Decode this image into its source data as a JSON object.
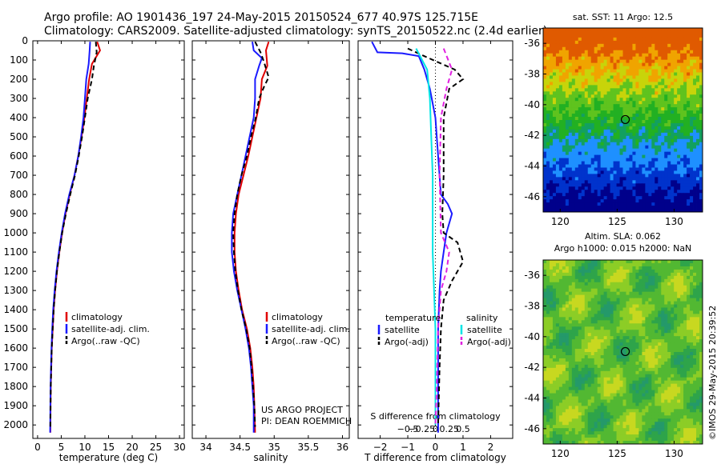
{
  "header": {
    "line1": "Argo profile: AO 1901436_197 24-May-2015 20150524_677 40.97S 125.715E",
    "line2": "Climatology: CARS2009. Satellite-adjusted climatology: synTS_20150522.nc (2.4d earlier)"
  },
  "stamp": "©IMOS 29-May-2015 20:39:52",
  "colors": {
    "climatology": "#e00000",
    "satellite": "#1a1aff",
    "argo": "#000000",
    "sal_sat": "#00e5e5",
    "sal_argo": "#e020e0"
  },
  "chart_data": [
    {
      "type": "line",
      "name": "temperature-profile",
      "xlabel": "temperature (deg C)",
      "ylabel": "",
      "xlim": [
        -1,
        31
      ],
      "ylim": [
        2070,
        0
      ],
      "xticks": [
        0,
        5,
        10,
        15,
        20,
        25,
        30
      ],
      "yticks": [
        0,
        100,
        200,
        300,
        400,
        500,
        600,
        700,
        800,
        900,
        1000,
        1100,
        1200,
        1300,
        1400,
        1500,
        1600,
        1700,
        1800,
        1900,
        2000
      ],
      "legend": [
        "climatology",
        "satellite-adj. clim.",
        "Argo(..raw -QC)"
      ],
      "series": [
        {
          "name": "climatology",
          "color": "#e00000",
          "dash": "",
          "points": [
            [
              12.6,
              5
            ],
            [
              13.2,
              50
            ],
            [
              11.5,
              120
            ],
            [
              10.9,
              200
            ],
            [
              10.4,
              300
            ],
            [
              9.9,
              400
            ],
            [
              9.3,
              500
            ],
            [
              8.6,
              600
            ],
            [
              7.8,
              700
            ],
            [
              6.8,
              800
            ],
            [
              5.9,
              900
            ],
            [
              5.2,
              1000
            ],
            [
              4.6,
              1100
            ],
            [
              4.1,
              1200
            ],
            [
              3.7,
              1300
            ],
            [
              3.4,
              1400
            ],
            [
              3.2,
              1500
            ],
            [
              3.0,
              1600
            ],
            [
              2.9,
              1700
            ],
            [
              2.8,
              1800
            ],
            [
              2.75,
              1900
            ],
            [
              2.7,
              2040
            ]
          ]
        },
        {
          "name": "satellite-adj. clim.",
          "color": "#1a1aff",
          "dash": "",
          "points": [
            [
              11.1,
              5
            ],
            [
              11.0,
              50
            ],
            [
              10.8,
              120
            ],
            [
              10.3,
              200
            ],
            [
              10.0,
              300
            ],
            [
              9.7,
              400
            ],
            [
              9.2,
              500
            ],
            [
              8.6,
              600
            ],
            [
              7.8,
              700
            ],
            [
              6.7,
              800
            ],
            [
              5.8,
              900
            ],
            [
              5.1,
              1000
            ],
            [
              4.5,
              1100
            ],
            [
              4.0,
              1200
            ],
            [
              3.6,
              1300
            ],
            [
              3.3,
              1400
            ],
            [
              3.1,
              1500
            ],
            [
              2.95,
              1600
            ],
            [
              2.85,
              1700
            ],
            [
              2.75,
              1800
            ],
            [
              2.7,
              1900
            ],
            [
              2.65,
              2040
            ]
          ]
        },
        {
          "name": "Argo(..raw -QC)",
          "color": "#000000",
          "dash": "6,4",
          "points": [
            [
              12.3,
              5
            ],
            [
              12.5,
              60
            ],
            [
              11.9,
              130
            ],
            [
              11.5,
              200
            ],
            [
              10.6,
              300
            ],
            [
              10.0,
              400
            ],
            [
              9.4,
              500
            ],
            [
              8.7,
              600
            ],
            [
              7.9,
              700
            ],
            [
              6.9,
              800
            ],
            [
              6.0,
              900
            ],
            [
              5.2,
              1000
            ],
            [
              4.6,
              1100
            ],
            [
              4.1,
              1200
            ],
            [
              3.7,
              1300
            ],
            [
              3.4,
              1400
            ],
            [
              3.2,
              1500
            ],
            [
              3.0,
              1600
            ],
            [
              2.9,
              1700
            ],
            [
              2.8,
              1800
            ],
            [
              2.75,
              1900
            ],
            [
              2.7,
              2010
            ]
          ]
        }
      ]
    },
    {
      "type": "line",
      "name": "salinity-profile",
      "xlabel": "salinity",
      "xlim": [
        33.8,
        36.1
      ],
      "ylim": [
        2070,
        0
      ],
      "xticks": [
        34,
        34.5,
        35,
        35.5,
        36
      ],
      "xtick_labels": [
        "34",
        "34.5",
        "35",
        "35.5",
        "36"
      ],
      "legend": [
        "climatology",
        "satellite-adj. clim.",
        "Argo(..raw -QC)"
      ],
      "credit": [
        "US ARGO PROJECT",
        "PI: DEAN ROEMMICH"
      ],
      "series": [
        {
          "name": "climatology",
          "color": "#e00000",
          "dash": "",
          "points": [
            [
              34.92,
              5
            ],
            [
              34.88,
              50
            ],
            [
              34.9,
              130
            ],
            [
              34.82,
              200
            ],
            [
              34.8,
              300
            ],
            [
              34.74,
              400
            ],
            [
              34.68,
              500
            ],
            [
              34.62,
              600
            ],
            [
              34.55,
              700
            ],
            [
              34.48,
              800
            ],
            [
              34.44,
              900
            ],
            [
              34.42,
              1000
            ],
            [
              34.42,
              1100
            ],
            [
              34.44,
              1200
            ],
            [
              34.48,
              1300
            ],
            [
              34.53,
              1400
            ],
            [
              34.6,
              1500
            ],
            [
              34.65,
              1600
            ],
            [
              34.68,
              1700
            ],
            [
              34.7,
              1800
            ],
            [
              34.71,
              1900
            ],
            [
              34.72,
              2040
            ]
          ]
        },
        {
          "name": "satellite-adj. clim.",
          "color": "#1a1aff",
          "dash": "",
          "points": [
            [
              34.68,
              5
            ],
            [
              34.7,
              50
            ],
            [
              34.82,
              90
            ],
            [
              34.78,
              130
            ],
            [
              34.72,
              200
            ],
            [
              34.72,
              300
            ],
            [
              34.7,
              400
            ],
            [
              34.64,
              500
            ],
            [
              34.58,
              600
            ],
            [
              34.52,
              700
            ],
            [
              34.46,
              800
            ],
            [
              34.4,
              900
            ],
            [
              34.38,
              1000
            ],
            [
              34.38,
              1100
            ],
            [
              34.41,
              1200
            ],
            [
              34.46,
              1300
            ],
            [
              34.52,
              1400
            ],
            [
              34.58,
              1500
            ],
            [
              34.63,
              1600
            ],
            [
              34.66,
              1700
            ],
            [
              34.68,
              1800
            ],
            [
              34.7,
              1900
            ],
            [
              34.7,
              2040
            ]
          ]
        },
        {
          "name": "Argo(..raw -QC)",
          "color": "#000000",
          "dash": "6,4",
          "points": [
            [
              34.72,
              5
            ],
            [
              34.8,
              60
            ],
            [
              34.85,
              110
            ],
            [
              34.92,
              190
            ],
            [
              34.85,
              240
            ],
            [
              34.78,
              300
            ],
            [
              34.73,
              400
            ],
            [
              34.66,
              500
            ],
            [
              34.6,
              600
            ],
            [
              34.52,
              700
            ],
            [
              34.46,
              800
            ],
            [
              34.42,
              900
            ],
            [
              34.4,
              1000
            ],
            [
              34.41,
              1100
            ],
            [
              34.43,
              1200
            ],
            [
              34.47,
              1300
            ],
            [
              34.52,
              1400
            ],
            [
              34.59,
              1500
            ],
            [
              34.64,
              1600
            ],
            [
              34.67,
              1700
            ],
            [
              34.69,
              1800
            ],
            [
              34.71,
              1900
            ],
            [
              34.72,
              2010
            ]
          ]
        }
      ]
    },
    {
      "type": "line",
      "name": "difference-profile",
      "xlabel": "T difference from climatology",
      "top_label": "S difference from climatology",
      "xlim": [
        -2.8,
        2.8
      ],
      "ylim": [
        2070,
        0
      ],
      "xticks": [
        -2,
        -1,
        0,
        1,
        2
      ],
      "xtick_labels": [
        "−2",
        "−1",
        "0",
        "1",
        "2"
      ],
      "s_ticks": [
        -0.5,
        -0.25,
        0,
        0.25,
        0.5
      ],
      "s_tick_labels": [
        "−0.5",
        "−0.25",
        "0",
        "0.25",
        "0.5"
      ],
      "legend_headers": [
        "temperature",
        "salinity"
      ],
      "legend": [
        "satellite",
        "Argo(-adj)",
        "satellite",
        "Argo(-adj)"
      ],
      "series": [
        {
          "name": "temperature satellite",
          "color": "#1a1aff",
          "dash": "",
          "points": [
            [
              -2.3,
              5
            ],
            [
              -2.1,
              60
            ],
            [
              -1.2,
              65
            ],
            [
              -0.6,
              80
            ],
            [
              -0.4,
              150
            ],
            [
              -0.2,
              250
            ],
            [
              0.0,
              400
            ],
            [
              0.1,
              600
            ],
            [
              0.2,
              800
            ],
            [
              0.45,
              850
            ],
            [
              0.6,
              900
            ],
            [
              0.4,
              1000
            ],
            [
              0.3,
              1100
            ],
            [
              0.2,
              1200
            ],
            [
              0.15,
              1300
            ],
            [
              0.1,
              1500
            ],
            [
              0.1,
              1800
            ],
            [
              0.1,
              2040
            ]
          ]
        },
        {
          "name": "temperature Argo(-adj)",
          "color": "#000000",
          "dash": "6,4",
          "points": [
            [
              -1.0,
              40
            ],
            [
              -0.4,
              80
            ],
            [
              0.7,
              150
            ],
            [
              1.0,
              200
            ],
            [
              0.5,
              250
            ],
            [
              0.3,
              400
            ],
            [
              0.3,
              700
            ],
            [
              0.25,
              900
            ],
            [
              0.3,
              1000
            ],
            [
              0.8,
              1050
            ],
            [
              1.0,
              1150
            ],
            [
              0.6,
              1250
            ],
            [
              0.3,
              1350
            ],
            [
              0.2,
              1500
            ],
            [
              0.15,
              1700
            ],
            [
              0.1,
              2000
            ]
          ]
        },
        {
          "name": "salinity satellite",
          "color": "#00e5e5",
          "dash": "",
          "points": [
            [
              -0.7,
              40
            ],
            [
              -0.3,
              150
            ],
            [
              -0.2,
              300
            ],
            [
              -0.15,
              500
            ],
            [
              -0.1,
              700
            ],
            [
              -0.1,
              900
            ],
            [
              -0.1,
              1100
            ],
            [
              -0.05,
              1300
            ],
            [
              0.0,
              1500
            ],
            [
              0.0,
              1800
            ],
            [
              0.0,
              2000
            ]
          ]
        },
        {
          "name": "salinity Argo(-adj)",
          "color": "#e020e0",
          "dash": "6,4",
          "points": [
            [
              0.3,
              40
            ],
            [
              0.6,
              150
            ],
            [
              0.4,
              250
            ],
            [
              0.2,
              400
            ],
            [
              0.15,
              700
            ],
            [
              0.2,
              1000
            ],
            [
              0.5,
              1100
            ],
            [
              0.4,
              1200
            ],
            [
              0.2,
              1300
            ],
            [
              0.1,
              1500
            ],
            [
              0.05,
              1800
            ],
            [
              0.0,
              2000
            ]
          ]
        }
      ]
    },
    {
      "type": "heatmap",
      "name": "sst-map",
      "title": "sat. SST: 11  Argo: 12.5",
      "xlim": [
        118.5,
        132.5
      ],
      "ylim": [
        -47,
        -35
      ],
      "xticks": [
        120,
        125,
        130
      ],
      "yticks": [
        -36,
        -38,
        -40,
        -42,
        -44,
        -46
      ],
      "marker": [
        125.715,
        -40.97
      ]
    },
    {
      "type": "heatmap",
      "name": "sla-map",
      "title": "Altim. SLA: 0.062",
      "subtitle": "Argo h1000: 0.015 h2000: NaN",
      "xlim": [
        118.5,
        132.5
      ],
      "ylim": [
        -47,
        -35
      ],
      "xticks": [
        120,
        125,
        130
      ],
      "yticks": [
        -36,
        -38,
        -40,
        -42,
        -44,
        -46
      ],
      "marker": [
        125.715,
        -40.97
      ]
    }
  ]
}
